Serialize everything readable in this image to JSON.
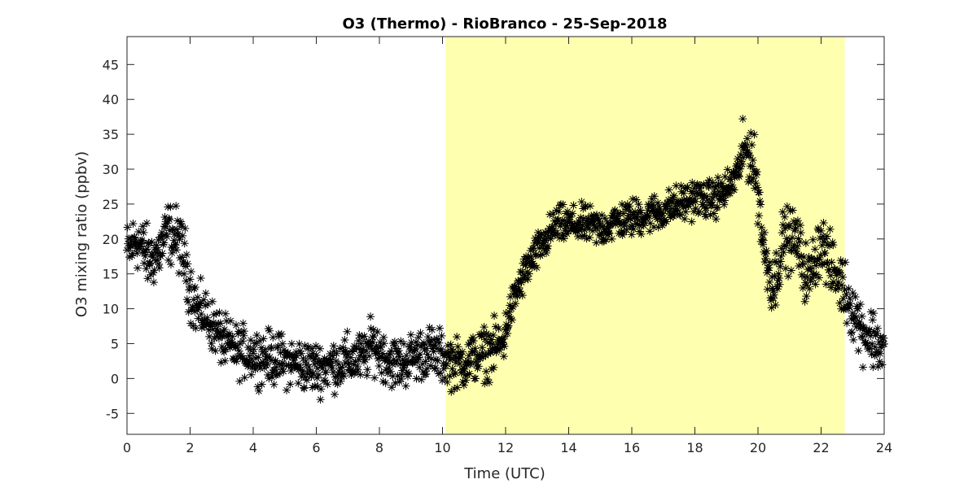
{
  "chart_data": {
    "type": "scatter",
    "title": "O3 (Thermo) - RioBranco - 25-Sep-2018",
    "xlabel": "Time (UTC)",
    "ylabel": "O3 mixing ratio (ppbv)",
    "xlim": [
      0,
      24
    ],
    "ylim": [
      -8,
      49
    ],
    "xticks": [
      0,
      2,
      4,
      6,
      8,
      10,
      12,
      14,
      16,
      18,
      20,
      22,
      24
    ],
    "yticks": [
      -5,
      0,
      5,
      10,
      15,
      20,
      25,
      30,
      35,
      40,
      45
    ],
    "marker": "asterisk",
    "marker_color": "#000000",
    "grid": false,
    "shaded_region": {
      "x_start": 10.1,
      "x_end": 22.75,
      "color": "#ffffb0"
    },
    "anchors": [
      [
        0,
        18
      ],
      [
        0.3,
        20
      ],
      [
        0.7,
        17
      ],
      [
        1.0,
        18
      ],
      [
        1.3,
        21
      ],
      [
        1.6,
        20
      ],
      [
        1.85,
        17
      ],
      [
        2.0,
        13
      ],
      [
        2.2,
        10
      ],
      [
        2.5,
        9
      ],
      [
        2.8,
        7
      ],
      [
        3.1,
        5
      ],
      [
        3.5,
        4
      ],
      [
        4.0,
        3.5
      ],
      [
        4.5,
        3
      ],
      [
        5.0,
        2.5
      ],
      [
        5.5,
        2
      ],
      [
        6.0,
        1.5
      ],
      [
        6.5,
        2
      ],
      [
        7.0,
        2.5
      ],
      [
        7.5,
        3
      ],
      [
        7.8,
        5
      ],
      [
        8.2,
        3
      ],
      [
        8.6,
        2
      ],
      [
        9.0,
        3
      ],
      [
        9.5,
        4
      ],
      [
        10.0,
        3
      ],
      [
        10.5,
        2
      ],
      [
        11.0,
        3
      ],
      [
        11.5,
        4
      ],
      [
        11.9,
        5
      ],
      [
        12.1,
        9
      ],
      [
        12.4,
        13
      ],
      [
        12.7,
        16
      ],
      [
        13.0,
        18
      ],
      [
        13.3,
        20
      ],
      [
        13.6,
        22
      ],
      [
        14.0,
        22
      ],
      [
        14.5,
        22
      ],
      [
        15.0,
        21.5
      ],
      [
        15.5,
        22.5
      ],
      [
        16.0,
        23
      ],
      [
        16.5,
        23.5
      ],
      [
        17.0,
        24
      ],
      [
        17.5,
        25
      ],
      [
        18.0,
        26
      ],
      [
        18.5,
        25.5
      ],
      [
        19.0,
        27
      ],
      [
        19.3,
        29
      ],
      [
        19.6,
        33
      ],
      [
        19.8,
        32
      ],
      [
        20.0,
        27
      ],
      [
        20.2,
        18
      ],
      [
        20.5,
        13
      ],
      [
        20.8,
        20
      ],
      [
        21.2,
        20
      ],
      [
        21.6,
        14
      ],
      [
        22.0,
        20
      ],
      [
        22.3,
        16
      ],
      [
        22.6,
        14
      ],
      [
        23.0,
        10
      ],
      [
        23.3,
        7
      ],
      [
        23.6,
        6
      ],
      [
        24.0,
        4
      ]
    ],
    "point_count": 1500
  }
}
